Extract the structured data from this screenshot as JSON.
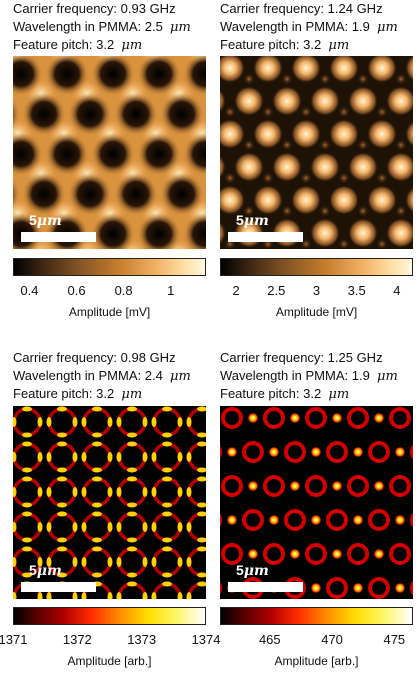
{
  "panels": [
    {
      "id": "top-left",
      "carrier_label": "Carrier frequency: 0.93 GHz",
      "wavelength_label": "Wavelength in PMMA: 2.5",
      "wavelength_unit": "μm",
      "pitch_label": "Feature pitch: 3.2",
      "pitch_unit": "μm",
      "scalebar_num": "5",
      "scalebar_unit": "μm",
      "colormap": "copper",
      "colorbar_ticks": [
        "0.4",
        "0.6",
        "0.8",
        "1"
      ],
      "colorbar_tick_values": [
        0.4,
        0.6,
        0.8,
        1.0
      ],
      "colorbar_range": [
        0.33,
        1.15
      ],
      "colorbar_label": "Amplitude [mV]"
    },
    {
      "id": "top-right",
      "carrier_label": "Carrier frequency: 1.24 GHz",
      "wavelength_label": "Wavelength in PMMA: 1.9",
      "wavelength_unit": "μm",
      "pitch_label": "Feature pitch: 3.2",
      "pitch_unit": "μm",
      "scalebar_num": "5",
      "scalebar_unit": "μm",
      "colormap": "copper",
      "colorbar_ticks": [
        "2",
        "2.5",
        "3",
        "3.5",
        "4"
      ],
      "colorbar_tick_values": [
        2,
        2.5,
        3,
        3.5,
        4
      ],
      "colorbar_range": [
        1.8,
        4.2
      ],
      "colorbar_label": "Amplitude [mV]"
    },
    {
      "id": "bottom-left",
      "carrier_label": "Carrier frequency: 0.98 GHz",
      "wavelength_label": "Wavelength in PMMA: 2.4",
      "wavelength_unit": "μm",
      "pitch_label": "Feature pitch: 3.2",
      "pitch_unit": "μm",
      "scalebar_num": "5",
      "scalebar_unit": "μm",
      "colormap": "hot",
      "colorbar_ticks": [
        "1371",
        "1372",
        "1373",
        "1374"
      ],
      "colorbar_tick_values": [
        1371,
        1372,
        1373,
        1374
      ],
      "colorbar_range": [
        1371,
        1374
      ],
      "colorbar_label": "Amplitude [arb.]"
    },
    {
      "id": "bottom-right",
      "carrier_label": "Carrier frequency: 1.25 GHz",
      "wavelength_label": "Wavelength in PMMA: 1.9",
      "wavelength_unit": "μm",
      "pitch_label": "Feature pitch: 3.2",
      "pitch_unit": "μm",
      "scalebar_num": "5",
      "scalebar_unit": "μm",
      "colormap": "hot",
      "colorbar_ticks": [
        "465",
        "470",
        "475"
      ],
      "colorbar_tick_values": [
        465,
        470,
        475
      ],
      "colorbar_range": [
        461,
        476.5
      ],
      "colorbar_label": "Amplitude [arb.]"
    }
  ],
  "colors": {
    "copper_dark": "#1a0f05",
    "copper_mid": "#c9802f",
    "copper_light": "#fff2c8",
    "hot_dark": "#000000",
    "hot_red": "#cc0000",
    "hot_yellow": "#ffe600",
    "hot_light": "#ffffff"
  }
}
